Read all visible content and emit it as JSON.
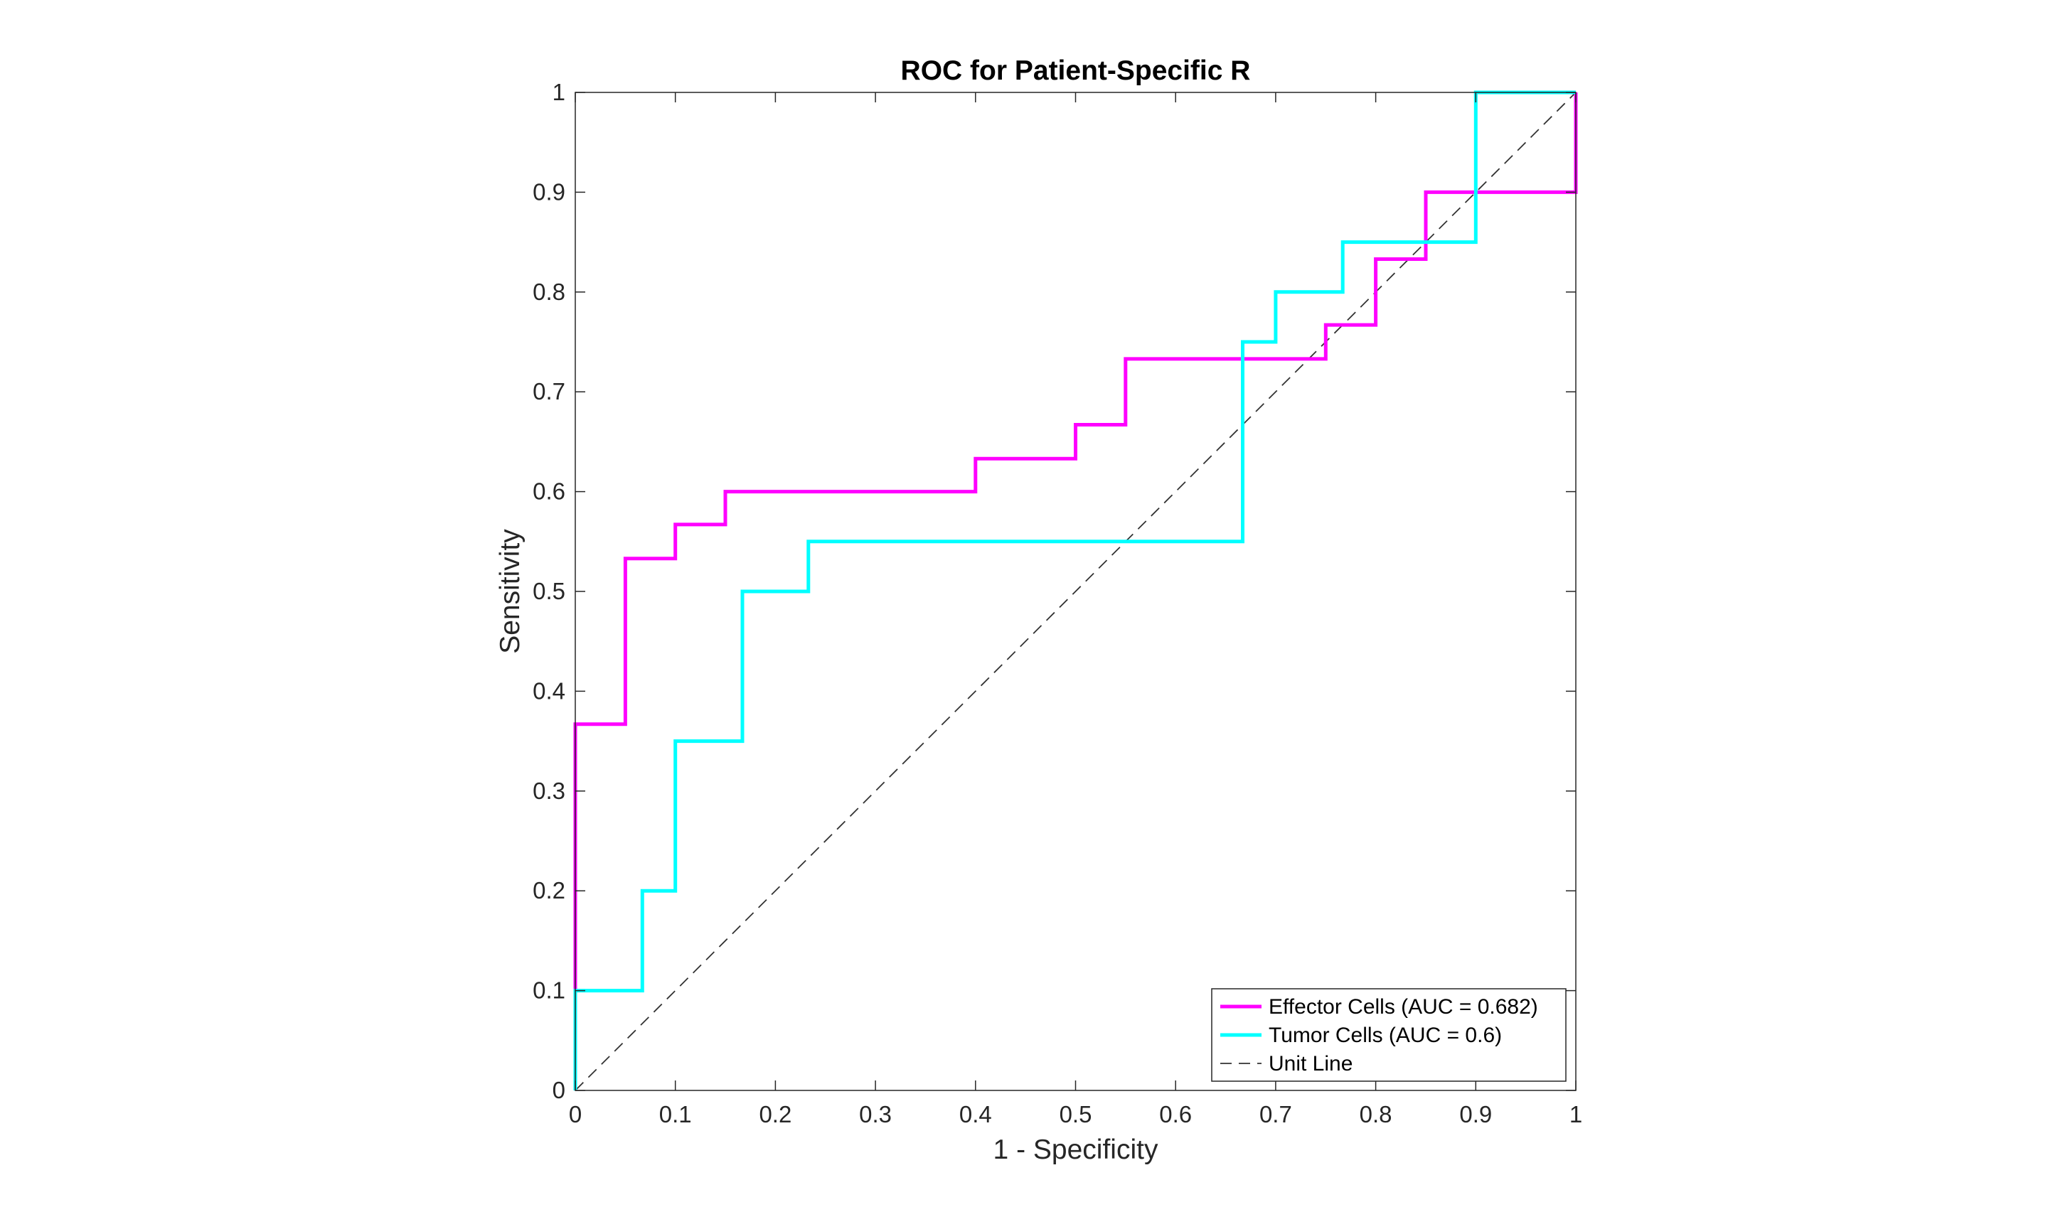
{
  "chart_data": {
    "type": "line",
    "title": "ROC for Patient-Specific R",
    "xlabel": "1 - Specificity",
    "ylabel": "Sensitivity",
    "xlim": [
      0,
      1
    ],
    "ylim": [
      0,
      1
    ],
    "xticks": [
      0,
      0.1,
      0.2,
      0.3,
      0.4,
      0.5,
      0.6,
      0.7,
      0.8,
      0.9,
      1
    ],
    "yticks": [
      0,
      0.1,
      0.2,
      0.3,
      0.4,
      0.5,
      0.6,
      0.7,
      0.8,
      0.9,
      1
    ],
    "xtick_labels": [
      "0",
      "0.1",
      "0.2",
      "0.3",
      "0.4",
      "0.5",
      "0.6",
      "0.7",
      "0.8",
      "0.9",
      "1"
    ],
    "ytick_labels": [
      "0",
      "0.1",
      "0.2",
      "0.3",
      "0.4",
      "0.5",
      "0.6",
      "0.7",
      "0.8",
      "0.9",
      "1"
    ],
    "grid": false,
    "legend_position": "bottom-right",
    "series": [
      {
        "name": "Effector Cells (AUC = 0.682)",
        "color": "#ff00ff",
        "style": "solid",
        "x": [
          0,
          0,
          0,
          0.05,
          0.05,
          0.1,
          0.1,
          0.15,
          0.15,
          0.4,
          0.4,
          0.5,
          0.5,
          0.55,
          0.55,
          0.75,
          0.75,
          0.8,
          0.8,
          0.85,
          0.85,
          1,
          1
        ],
        "y": [
          0,
          0.1,
          0.367,
          0.367,
          0.533,
          0.533,
          0.567,
          0.567,
          0.6,
          0.6,
          0.633,
          0.633,
          0.667,
          0.667,
          0.733,
          0.733,
          0.767,
          0.767,
          0.833,
          0.833,
          0.9,
          0.9,
          1
        ]
      },
      {
        "name": "Tumor Cells (AUC = 0.6)",
        "color": "#00ffff",
        "style": "solid",
        "x": [
          0,
          0,
          0.067,
          0.067,
          0.1,
          0.1,
          0.167,
          0.167,
          0.233,
          0.233,
          0.667,
          0.667,
          0.7,
          0.7,
          0.767,
          0.767,
          0.9,
          0.9,
          1
        ],
        "y": [
          0,
          0.1,
          0.1,
          0.2,
          0.2,
          0.35,
          0.35,
          0.5,
          0.5,
          0.55,
          0.55,
          0.75,
          0.75,
          0.8,
          0.8,
          0.85,
          0.85,
          1,
          1
        ]
      },
      {
        "name": "Unit Line",
        "color": "#333333",
        "style": "dashed",
        "x": [
          0,
          1
        ],
        "y": [
          0,
          1
        ]
      }
    ]
  }
}
